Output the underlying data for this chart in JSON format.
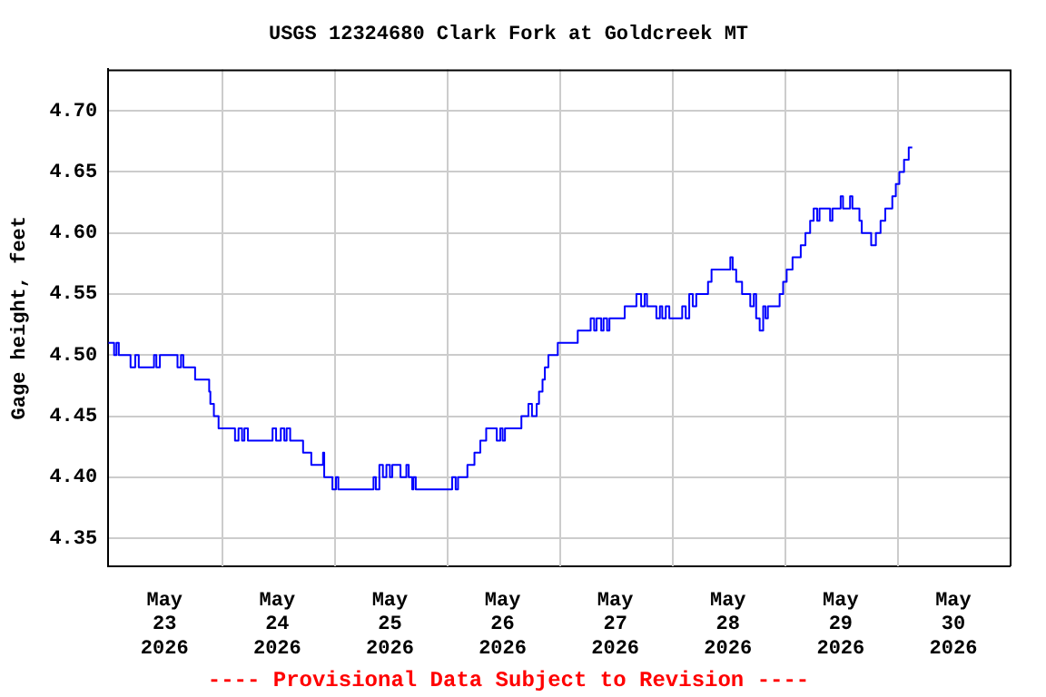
{
  "chart_data": {
    "type": "step",
    "title": "USGS 12324680 Clark Fork at Goldcreek MT",
    "ylabel": "Gage height, feet",
    "annotations": [
      "---- Provisional Data Subject to Revision ----"
    ],
    "xlim": [
      "2026-05-23T00:00",
      "2026-05-31T00:00"
    ],
    "xticks": [
      {
        "value": "2026-05-23T12:00",
        "label": "May 23 2026"
      },
      {
        "value": "2026-05-24T00:00",
        "label": null
      },
      {
        "value": "2026-05-24T12:00",
        "label": "May 24 2026"
      },
      {
        "value": "2026-05-25T00:00",
        "label": null
      },
      {
        "value": "2026-05-25T12:00",
        "label": "May 25 2026"
      },
      {
        "value": "2026-05-26T00:00",
        "label": null
      },
      {
        "value": "2026-05-26T12:00",
        "label": "May 26 2026"
      },
      {
        "value": "2026-05-27T00:00",
        "label": null
      },
      {
        "value": "2026-05-27T12:00",
        "label": "May 27 2026"
      },
      {
        "value": "2026-05-28T00:00",
        "label": null
      },
      {
        "value": "2026-05-28T12:00",
        "label": "May 28 2026"
      },
      {
        "value": "2026-05-29T00:00",
        "label": null
      },
      {
        "value": "2026-05-29T12:00",
        "label": "May 29 2026"
      },
      {
        "value": "2026-05-30T00:00",
        "label": null
      },
      {
        "value": "2026-05-30T12:00",
        "label": "May 30 2026"
      }
    ],
    "ylim": [
      4.327,
      4.734
    ],
    "yticks": [
      {
        "value": 4.35,
        "label": "4.35"
      },
      {
        "value": 4.4,
        "label": "4.40"
      },
      {
        "value": 4.45,
        "label": "4.45"
      },
      {
        "value": 4.5,
        "label": "4.50"
      },
      {
        "value": 4.55,
        "label": "4.55"
      },
      {
        "value": 4.6,
        "label": "4.60"
      },
      {
        "value": 4.65,
        "label": "4.65"
      },
      {
        "value": 4.7,
        "label": "4.70"
      }
    ],
    "grid": true,
    "legend": false,
    "marker": "none",
    "series": [
      {
        "color": "#0000ff",
        "x": [
          "2026-05-23T00:00",
          "2026-05-23T01:15",
          "2026-05-23T01:45",
          "2026-05-23T02:15",
          "2026-05-23T04:45",
          "2026-05-23T05:45",
          "2026-05-23T06:30",
          "2026-05-23T09:45",
          "2026-05-23T10:15",
          "2026-05-23T11:00",
          "2026-05-23T14:45",
          "2026-05-23T15:30",
          "2026-05-23T16:00",
          "2026-05-23T18:30",
          "2026-05-23T21:30",
          "2026-05-23T21:45",
          "2026-05-23T22:30",
          "2026-05-23T23:30",
          "2026-05-24T03:00",
          "2026-05-24T03:45",
          "2026-05-24T04:30",
          "2026-05-24T05:00",
          "2026-05-24T05:45",
          "2026-05-24T11:00",
          "2026-05-24T11:45",
          "2026-05-24T12:45",
          "2026-05-24T13:30",
          "2026-05-24T14:00",
          "2026-05-24T14:45",
          "2026-05-24T17:30",
          "2026-05-24T19:15",
          "2026-05-24T21:45",
          "2026-05-24T22:00",
          "2026-05-24T23:45",
          "2026-05-25T00:30",
          "2026-05-25T01:00",
          "2026-05-25T08:30",
          "2026-05-25T09:00",
          "2026-05-25T09:45",
          "2026-05-25T10:30",
          "2026-05-25T11:15",
          "2026-05-25T12:00",
          "2026-05-25T12:30",
          "2026-05-25T14:15",
          "2026-05-25T15:30",
          "2026-05-25T16:00",
          "2026-05-25T16:45",
          "2026-05-25T17:00",
          "2026-05-25T17:30",
          "2026-05-26T01:15",
          "2026-05-26T02:00",
          "2026-05-26T02:30",
          "2026-05-26T04:30",
          "2026-05-26T06:00",
          "2026-05-26T07:15",
          "2026-05-26T08:30",
          "2026-05-26T10:45",
          "2026-05-26T11:30",
          "2026-05-26T12:00",
          "2026-05-26T12:30",
          "2026-05-26T16:00",
          "2026-05-26T17:30",
          "2026-05-26T18:15",
          "2026-05-26T19:15",
          "2026-05-26T19:45",
          "2026-05-26T20:30",
          "2026-05-26T21:00",
          "2026-05-26T21:45",
          "2026-05-26T23:45",
          "2026-05-27T04:00",
          "2026-05-27T06:45",
          "2026-05-27T07:30",
          "2026-05-27T08:00",
          "2026-05-27T09:00",
          "2026-05-27T09:30",
          "2026-05-27T10:15",
          "2026-05-27T10:45",
          "2026-05-27T14:00",
          "2026-05-27T16:30",
          "2026-05-27T17:30",
          "2026-05-27T18:15",
          "2026-05-27T18:45",
          "2026-05-27T20:45",
          "2026-05-27T21:30",
          "2026-05-27T22:00",
          "2026-05-27T22:45",
          "2026-05-27T23:30",
          "2026-05-28T02:15",
          "2026-05-28T03:00",
          "2026-05-28T03:45",
          "2026-05-28T04:30",
          "2026-05-28T05:15",
          "2026-05-28T07:45",
          "2026-05-28T08:30",
          "2026-05-28T12:30",
          "2026-05-28T13:00",
          "2026-05-28T13:45",
          "2026-05-28T15:00",
          "2026-05-28T16:45",
          "2026-05-28T17:30",
          "2026-05-28T18:00",
          "2026-05-28T18:45",
          "2026-05-28T19:30",
          "2026-05-28T20:00",
          "2026-05-28T20:30",
          "2026-05-28T23:00",
          "2026-05-28T23:45",
          "2026-05-29T00:30",
          "2026-05-29T01:45",
          "2026-05-29T03:30",
          "2026-05-29T04:30",
          "2026-05-29T05:30",
          "2026-05-29T06:15",
          "2026-05-29T07:00",
          "2026-05-29T07:30",
          "2026-05-29T09:45",
          "2026-05-29T10:15",
          "2026-05-29T12:00",
          "2026-05-29T12:30",
          "2026-05-29T14:00",
          "2026-05-29T14:30",
          "2026-05-29T16:00",
          "2026-05-29T16:30",
          "2026-05-29T18:30",
          "2026-05-29T19:30",
          "2026-05-29T20:30",
          "2026-05-29T21:30",
          "2026-05-29T23:00",
          "2026-05-29T23:45",
          "2026-05-30T00:30",
          "2026-05-30T01:30",
          "2026-05-30T02:30",
          "2026-05-30T03:15"
        ],
        "values": [
          4.51,
          4.5,
          4.51,
          4.5,
          4.49,
          4.5,
          4.49,
          4.5,
          4.49,
          4.5,
          4.49,
          4.5,
          4.49,
          4.48,
          4.47,
          4.46,
          4.45,
          4.44,
          4.43,
          4.44,
          4.43,
          4.44,
          4.43,
          4.44,
          4.43,
          4.44,
          4.43,
          4.44,
          4.43,
          4.42,
          4.41,
          4.42,
          4.4,
          4.39,
          4.4,
          4.39,
          4.4,
          4.39,
          4.41,
          4.4,
          4.41,
          4.4,
          4.41,
          4.4,
          4.41,
          4.4,
          4.39,
          4.4,
          4.39,
          4.4,
          4.39,
          4.4,
          4.41,
          4.42,
          4.43,
          4.44,
          4.43,
          4.44,
          4.43,
          4.44,
          4.45,
          4.46,
          4.45,
          4.46,
          4.47,
          4.48,
          4.49,
          4.5,
          4.51,
          4.52,
          4.53,
          4.52,
          4.53,
          4.52,
          4.53,
          4.52,
          4.53,
          4.54,
          4.55,
          4.54,
          4.55,
          4.54,
          4.53,
          4.54,
          4.53,
          4.54,
          4.53,
          4.54,
          4.53,
          4.55,
          4.54,
          4.55,
          4.56,
          4.57,
          4.58,
          4.57,
          4.56,
          4.55,
          4.54,
          4.55,
          4.53,
          4.52,
          4.54,
          4.53,
          4.54,
          4.55,
          4.56,
          4.57,
          4.58,
          4.59,
          4.6,
          4.61,
          4.62,
          4.61,
          4.62,
          4.61,
          4.62,
          4.63,
          4.62,
          4.63,
          4.62,
          4.61,
          4.6,
          4.59,
          4.6,
          4.61,
          4.62,
          4.63,
          4.64,
          4.65,
          4.66,
          4.67,
          4.67
        ]
      }
    ]
  }
}
